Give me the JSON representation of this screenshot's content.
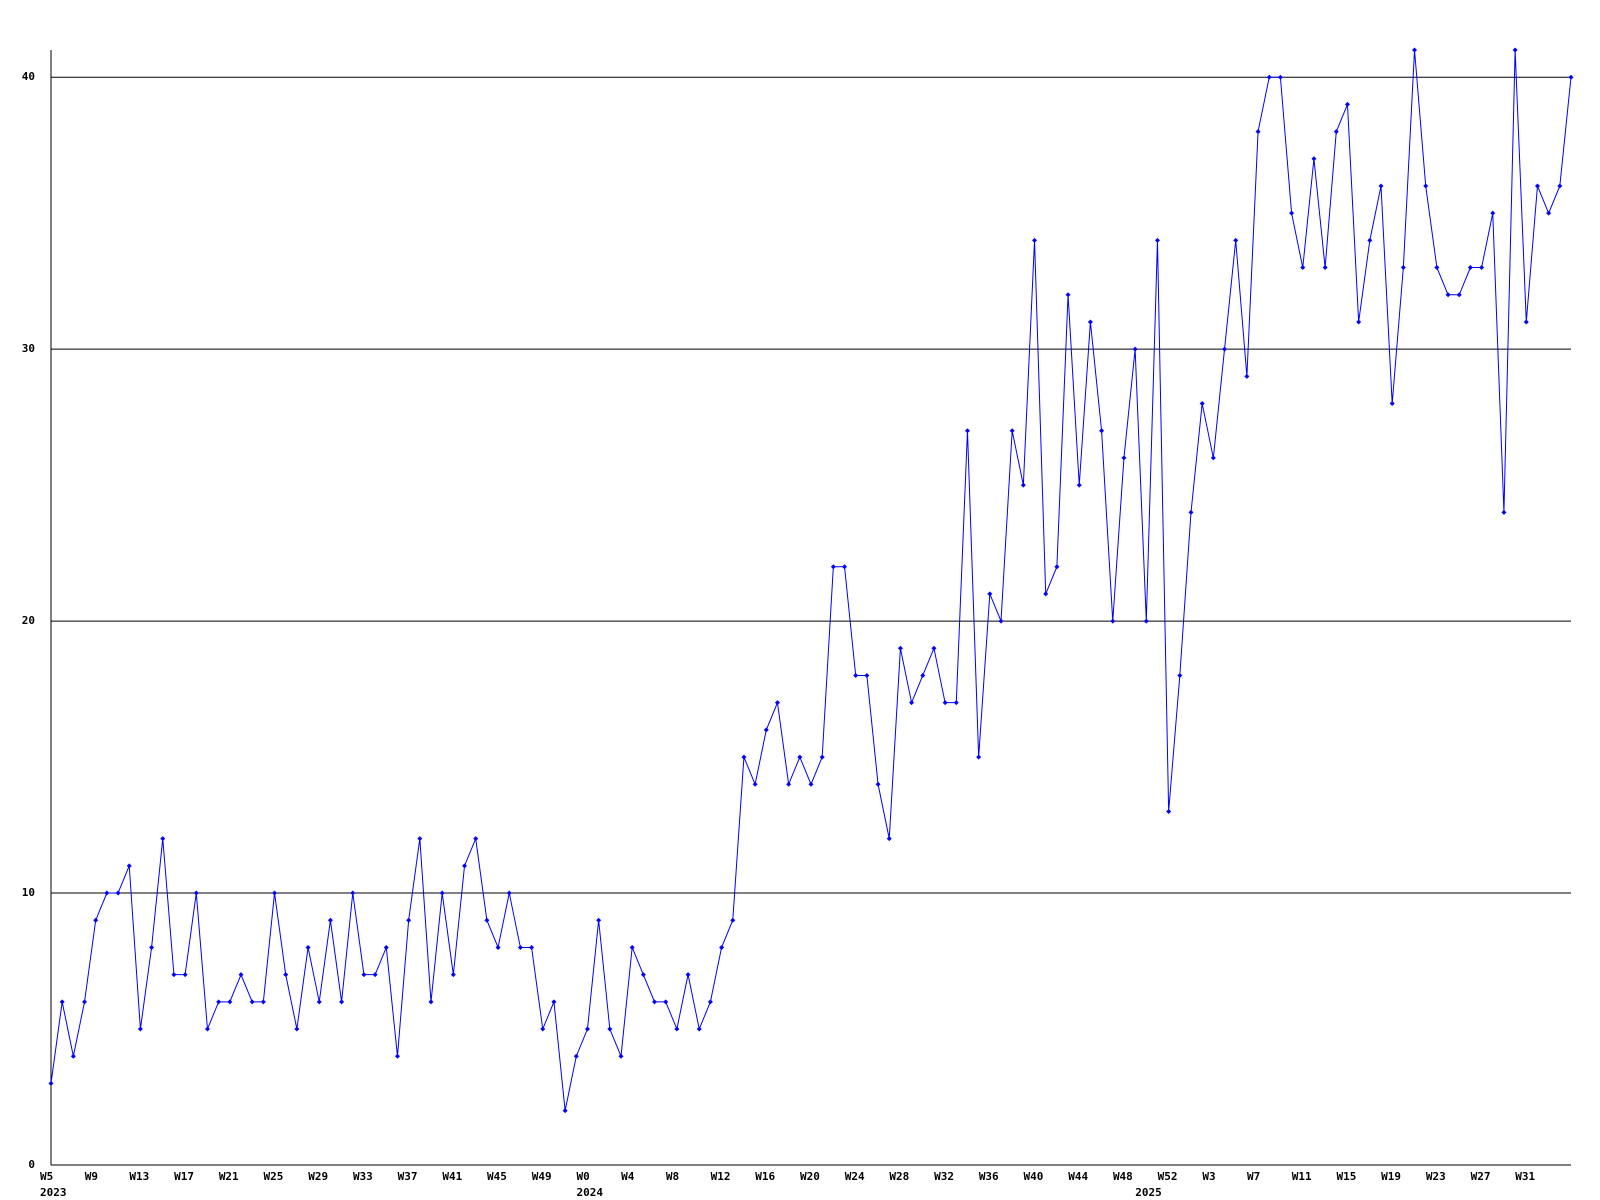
{
  "chart_data": {
    "type": "line",
    "categories": [
      "W5",
      null,
      null,
      null,
      "W9",
      null,
      null,
      null,
      "W13",
      null,
      null,
      null,
      "W17",
      null,
      null,
      null,
      "W21",
      null,
      null,
      null,
      "W25",
      null,
      null,
      null,
      "W29",
      null,
      null,
      null,
      "W33",
      null,
      null,
      null,
      "W37",
      null,
      null,
      null,
      "W41",
      null,
      null,
      null,
      "W45",
      null,
      null,
      null,
      "W49",
      null,
      null,
      null,
      "W0",
      null,
      null,
      null,
      "W4",
      null,
      null,
      null,
      "W8",
      null,
      null,
      null,
      "W12",
      null,
      null,
      null,
      "W16",
      null,
      null,
      null,
      "W20",
      null,
      null,
      null,
      "W24",
      null,
      null,
      null,
      "W28",
      null,
      null,
      null,
      "W32",
      null,
      null,
      null,
      "W36",
      null,
      null,
      null,
      "W40",
      null,
      null,
      null,
      "W44",
      null,
      null,
      null,
      "W48",
      null,
      null,
      null,
      "W52",
      null,
      null,
      null,
      "W3",
      null,
      null,
      null,
      "W7",
      null,
      null,
      null,
      "W11",
      null,
      null,
      null,
      "W15",
      null,
      null,
      null,
      "W19",
      null,
      null,
      null,
      "W23",
      null,
      null,
      null,
      "W27",
      null,
      null,
      null,
      "W31",
      null,
      null,
      null,
      null
    ],
    "year_labels": [
      "2023",
      null,
      null,
      null,
      null,
      null,
      null,
      null,
      null,
      null,
      null,
      null,
      null,
      null,
      null,
      null,
      null,
      null,
      null,
      null,
      null,
      null,
      null,
      null,
      null,
      null,
      null,
      null,
      null,
      null,
      null,
      null,
      null,
      null,
      null,
      null,
      null,
      null,
      null,
      null,
      null,
      null,
      null,
      null,
      null,
      null,
      null,
      null,
      "2024",
      null,
      null,
      null,
      null,
      null,
      null,
      null,
      null,
      null,
      null,
      null,
      null,
      null,
      null,
      null,
      null,
      null,
      null,
      null,
      null,
      null,
      null,
      null,
      null,
      null,
      null,
      null,
      null,
      null,
      null,
      null,
      null,
      null,
      null,
      null,
      null,
      null,
      null,
      null,
      null,
      null,
      null,
      null,
      null,
      null,
      null,
      null,
      null,
      null,
      "2025",
      null,
      null,
      null,
      null,
      null,
      null,
      null,
      null,
      null,
      null,
      null,
      null,
      null,
      null,
      null,
      null,
      null,
      null,
      null,
      null,
      null,
      null,
      null,
      null,
      null,
      null,
      null,
      null,
      null,
      null,
      null,
      null,
      null,
      null,
      null,
      null
    ],
    "series": [
      {
        "color": "#0000ff",
        "values": [
          3,
          6,
          4,
          6,
          9,
          10,
          10,
          11,
          5,
          8,
          12,
          7,
          7,
          10,
          5,
          6,
          6,
          7,
          6,
          6,
          10,
          7,
          5,
          8,
          6,
          9,
          6,
          10,
          7,
          7,
          8,
          4,
          9,
          12,
          6,
          10,
          7,
          11,
          12,
          9,
          8,
          10,
          8,
          8,
          5,
          6,
          2,
          4,
          5,
          9,
          5,
          4,
          8,
          7,
          6,
          6,
          5,
          7,
          5,
          6,
          8,
          9,
          15,
          14,
          16,
          17,
          14,
          15,
          14,
          15,
          22,
          22,
          18,
          18,
          14,
          12,
          19,
          17,
          18,
          19,
          17,
          17,
          27,
          15,
          21,
          20,
          27,
          25,
          34,
          21,
          22,
          32,
          25,
          31,
          27,
          20,
          26,
          30,
          20,
          34,
          13,
          18,
          24,
          28,
          26,
          30,
          34,
          29,
          38,
          40,
          40,
          35,
          33,
          37,
          33,
          38,
          39,
          31,
          34,
          36,
          28,
          33,
          41,
          36,
          33,
          32,
          32,
          33,
          33,
          35,
          24,
          41,
          31,
          36,
          35,
          36,
          40
        ]
      }
    ],
    "ylim": [
      0,
      41
    ],
    "yticks": [
      0,
      10,
      20,
      30,
      40
    ],
    "grid": true
  }
}
